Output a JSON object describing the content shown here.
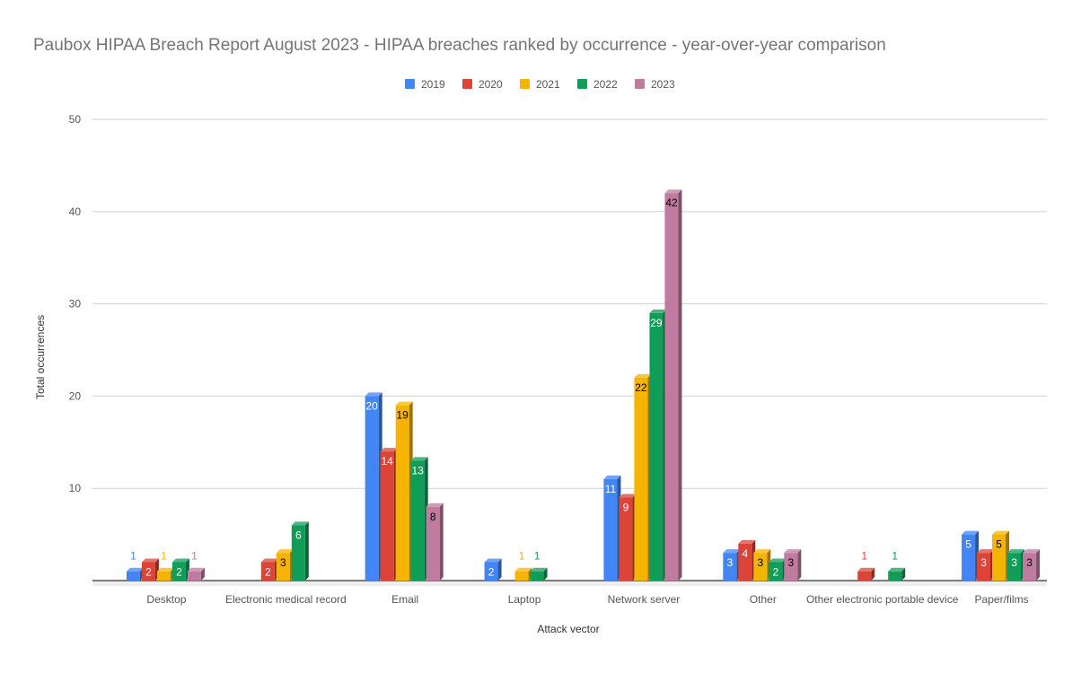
{
  "chart_data": {
    "type": "bar",
    "title": "Paubox HIPAA Breach Report August 2023 - HIPAA breaches ranked by occurrence - year-over-year comparison",
    "xlabel": "Attack vector",
    "ylabel": "Total occurrences",
    "ylim": [
      0,
      50
    ],
    "yticks": [
      10,
      20,
      30,
      40,
      50
    ],
    "grid": true,
    "legend_position": "top",
    "categories": [
      "Desktop",
      "Electronic medical record",
      "Email",
      "Laptop",
      "Network server",
      "Other",
      "Other electronic portable device",
      "Paper/films"
    ],
    "series": [
      {
        "name": "2019",
        "color": "#4285f4",
        "label_color": "#ffffff",
        "values": [
          1,
          null,
          20,
          2,
          11,
          3,
          null,
          5
        ]
      },
      {
        "name": "2020",
        "color": "#db4437",
        "label_color": "#ffffff",
        "values": [
          2,
          2,
          14,
          null,
          9,
          4,
          1,
          3
        ]
      },
      {
        "name": "2021",
        "color": "#f4b400",
        "label_color": "#000000",
        "values": [
          1,
          3,
          19,
          1,
          22,
          3,
          null,
          5
        ]
      },
      {
        "name": "2022",
        "color": "#0f9d58",
        "label_color": "#ffffff",
        "values": [
          2,
          6,
          13,
          1,
          29,
          2,
          1,
          3
        ]
      },
      {
        "name": "2023",
        "color": "#c27ba0",
        "label_color": "#000000",
        "values": [
          1,
          null,
          8,
          null,
          42,
          3,
          null,
          3
        ]
      }
    ]
  }
}
